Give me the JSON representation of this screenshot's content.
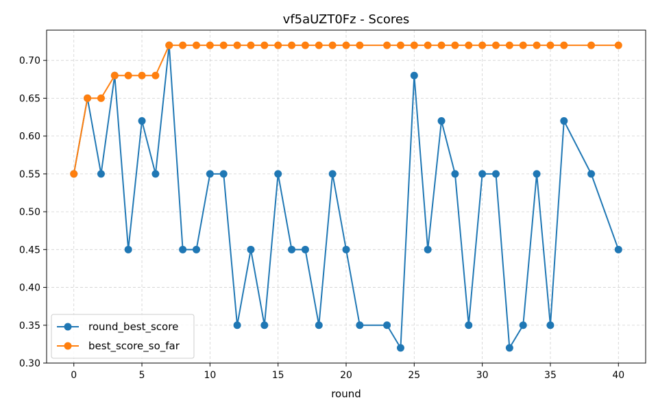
{
  "chart_data": {
    "type": "line",
    "title": "vf5aUZT0Fz - Scores",
    "xlabel": "round",
    "ylabel": "",
    "xlim": [
      -2,
      42
    ],
    "ylim": [
      0.3,
      0.74
    ],
    "xticks": [
      0,
      5,
      10,
      15,
      20,
      25,
      30,
      35,
      40
    ],
    "yticks": [
      0.3,
      0.35,
      0.4,
      0.45,
      0.5,
      0.55,
      0.6,
      0.65,
      0.7
    ],
    "grid": true,
    "legend_position": "lower-left",
    "x": [
      0,
      1,
      2,
      3,
      4,
      5,
      6,
      7,
      8,
      9,
      10,
      11,
      12,
      13,
      14,
      15,
      16,
      17,
      18,
      19,
      20,
      21,
      23,
      24,
      25,
      26,
      27,
      28,
      29,
      30,
      31,
      32,
      33,
      34,
      35,
      36,
      38,
      40
    ],
    "series": [
      {
        "name": "round_best_score",
        "color": "#1f77b4",
        "values": [
          0.55,
          0.65,
          0.55,
          0.68,
          0.45,
          0.62,
          0.55,
          0.72,
          0.45,
          0.45,
          0.55,
          0.55,
          0.35,
          0.45,
          0.35,
          0.55,
          0.45,
          0.45,
          0.35,
          0.55,
          0.45,
          0.35,
          0.35,
          0.32,
          0.68,
          0.45,
          0.62,
          0.55,
          0.35,
          0.55,
          0.55,
          0.32,
          0.35,
          0.55,
          0.35,
          0.62,
          0.55,
          0.45
        ]
      },
      {
        "name": "best_score_so_far",
        "color": "#ff7f0e",
        "values": [
          0.55,
          0.65,
          0.65,
          0.68,
          0.68,
          0.68,
          0.68,
          0.72,
          0.72,
          0.72,
          0.72,
          0.72,
          0.72,
          0.72,
          0.72,
          0.72,
          0.72,
          0.72,
          0.72,
          0.72,
          0.72,
          0.72,
          0.72,
          0.72,
          0.72,
          0.72,
          0.72,
          0.72,
          0.72,
          0.72,
          0.72,
          0.72,
          0.72,
          0.72,
          0.72,
          0.72,
          0.72,
          0.72
        ]
      }
    ]
  }
}
